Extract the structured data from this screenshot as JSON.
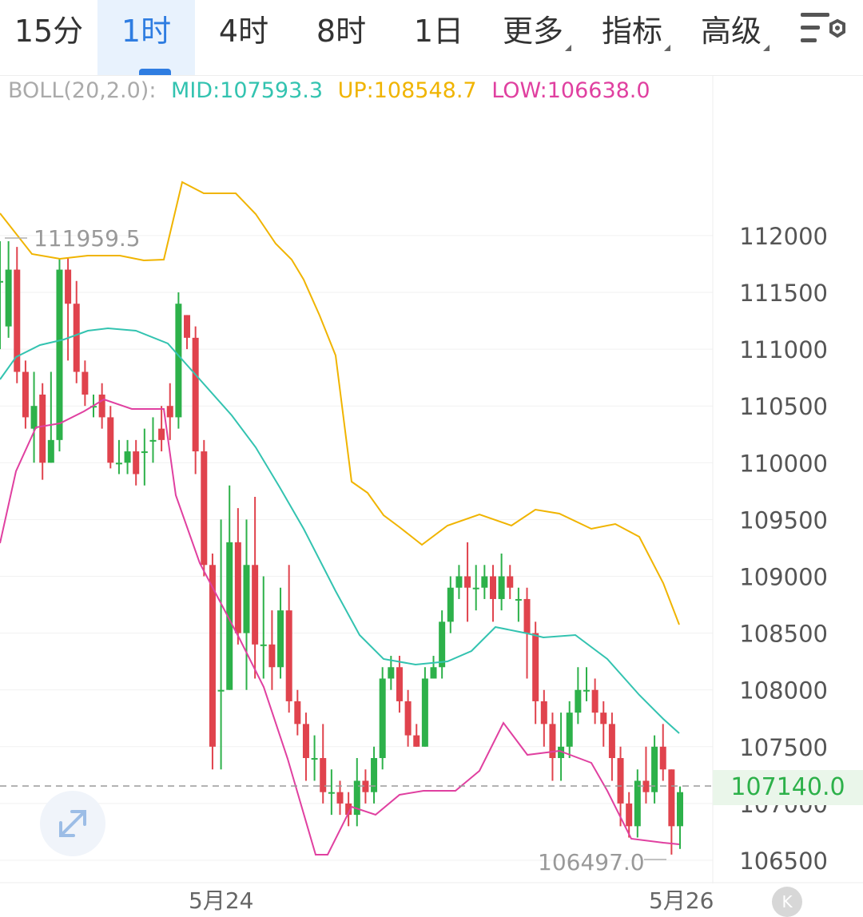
{
  "tabs": {
    "items": [
      {
        "label": "15分"
      },
      {
        "label": "1时"
      },
      {
        "label": "4时"
      },
      {
        "label": "8时"
      },
      {
        "label": "1日"
      },
      {
        "label": "更多"
      },
      {
        "label": "指标"
      },
      {
        "label": "高级"
      }
    ],
    "active_index": 1,
    "settings_icon": "settings-sliders-icon"
  },
  "indicator": {
    "name": "BOLL(20,2.0):",
    "mid": "MID:107593.3",
    "up": "UP:108548.7",
    "low": "LOW:106638.0",
    "colors": {
      "name": "#aaaaaa",
      "mid": "#33c3b0",
      "up": "#f0b400",
      "low": "#e040a0"
    }
  },
  "current_price": "107140.0",
  "high_label": "111959.5",
  "low_label": "106497.0",
  "dates": [
    "5月24",
    "5月26"
  ],
  "k_button": "K",
  "colors": {
    "up": "#2db14a",
    "down": "#e0434d",
    "accent": "#2f7de1"
  },
  "chart_data": {
    "type": "candlestick",
    "ylim": [
      106300,
      113600
    ],
    "yticks": [
      106500,
      107000,
      107500,
      108000,
      108500,
      109000,
      109500,
      110000,
      110500,
      111000,
      111500,
      112000
    ],
    "candles": [
      [
        111600,
        111600,
        111950,
        111000
      ],
      [
        111200,
        111700,
        111950,
        111100
      ],
      [
        111700,
        110800,
        111900,
        110700
      ],
      [
        110800,
        110400,
        110900,
        110300
      ],
      [
        110300,
        110500,
        110800,
        110000
      ],
      [
        110600,
        110000,
        110700,
        109850
      ],
      [
        110000,
        110200,
        110800,
        110000
      ],
      [
        110200,
        111700,
        111800,
        110100
      ],
      [
        111700,
        111400,
        111800,
        110900
      ],
      [
        111400,
        110800,
        111600,
        110700
      ],
      [
        110800,
        110600,
        110900,
        110500
      ],
      [
        110500,
        110500,
        110600,
        110400
      ],
      [
        110600,
        110400,
        110700,
        110300
      ],
      [
        110400,
        110000,
        110500,
        109950
      ],
      [
        110000,
        110000,
        110200,
        109900
      ],
      [
        110000,
        110100,
        110200,
        109900
      ],
      [
        110100,
        109900,
        110200,
        109800
      ],
      [
        110100,
        110100,
        110300,
        109800
      ],
      [
        110200,
        110200,
        110400,
        110000
      ],
      [
        110300,
        110200,
        110500,
        110100
      ],
      [
        110500,
        110400,
        110700,
        110200
      ],
      [
        110400,
        111400,
        111500,
        110300
      ],
      [
        111300,
        111100,
        111300,
        111000
      ],
      [
        111100,
        110100,
        111200,
        109900
      ],
      [
        110100,
        109100,
        110200,
        109000
      ],
      [
        109100,
        107500,
        109200,
        107300
      ],
      [
        108000,
        108000,
        109500,
        107300
      ],
      [
        108000,
        109300,
        109800,
        108000
      ],
      [
        109300,
        108500,
        109600,
        108400
      ],
      [
        108500,
        109100,
        109500,
        108000
      ],
      [
        109100,
        108400,
        109700,
        108100
      ],
      [
        108400,
        108400,
        109000,
        108100
      ],
      [
        108400,
        108200,
        108700,
        108000
      ],
      [
        108200,
        108700,
        108900,
        108100
      ],
      [
        108700,
        107900,
        109100,
        107800
      ],
      [
        107900,
        107700,
        108000,
        107600
      ],
      [
        107700,
        107400,
        107800,
        107200
      ],
      [
        107400,
        107400,
        107600,
        107200
      ],
      [
        107400,
        107100,
        107700,
        107000
      ],
      [
        107100,
        107100,
        107300,
        106900
      ],
      [
        107100,
        107000,
        107200,
        106900
      ],
      [
        107000,
        106900,
        107100,
        106800
      ],
      [
        106900,
        107200,
        107400,
        106800
      ],
      [
        107200,
        107100,
        107300,
        107000
      ],
      [
        107100,
        107400,
        107500,
        107000
      ],
      [
        107400,
        108100,
        108200,
        107300
      ],
      [
        108100,
        108200,
        108300,
        108000
      ],
      [
        108200,
        107900,
        108300,
        107800
      ],
      [
        107900,
        107600,
        108000,
        107500
      ],
      [
        107600,
        107500,
        107700,
        107500
      ],
      [
        107500,
        108100,
        108200,
        107500
      ],
      [
        108100,
        108200,
        108300,
        108100
      ],
      [
        108200,
        108600,
        108700,
        108100
      ],
      [
        108600,
        108900,
        109000,
        108500
      ],
      [
        108900,
        109000,
        109100,
        108800
      ],
      [
        109000,
        108900,
        109300,
        108600
      ],
      [
        108900,
        108900,
        109100,
        108700
      ],
      [
        108900,
        109000,
        109100,
        108800
      ],
      [
        109000,
        108800,
        109100,
        108600
      ],
      [
        108800,
        109000,
        109200,
        108700
      ],
      [
        109000,
        108900,
        109100,
        108800
      ],
      [
        108800,
        108800,
        108900,
        108600
      ],
      [
        108800,
        108500,
        108900,
        108100
      ],
      [
        108500,
        107900,
        108600,
        107700
      ],
      [
        107900,
        107700,
        108000,
        107500
      ],
      [
        107700,
        107400,
        107800,
        107200
      ],
      [
        107400,
        107500,
        107800,
        107200
      ],
      [
        107500,
        107800,
        107900,
        107400
      ],
      [
        107800,
        108000,
        108200,
        107700
      ],
      [
        108000,
        108000,
        108200,
        107900
      ],
      [
        108000,
        107800,
        108100,
        107700
      ],
      [
        107800,
        107700,
        107900,
        107500
      ],
      [
        107700,
        107400,
        107800,
        107200
      ],
      [
        107400,
        107000,
        107500,
        106800
      ],
      [
        107000,
        106800,
        107100,
        106700
      ],
      [
        106800,
        107200,
        107300,
        106700
      ],
      [
        107200,
        107100,
        107500,
        107000
      ],
      [
        107100,
        107500,
        107600,
        107000
      ],
      [
        107500,
        107300,
        107700,
        107200
      ],
      [
        107300,
        106800,
        107300,
        106550
      ],
      [
        106800,
        107100,
        107150,
        106600
      ]
    ],
    "boll_up_y": [
      [
        0,
        267
      ],
      [
        40,
        318
      ],
      [
        75,
        324
      ],
      [
        110,
        320
      ],
      [
        150,
        320
      ],
      [
        180,
        326
      ],
      [
        205,
        325
      ],
      [
        228,
        228
      ],
      [
        255,
        242
      ],
      [
        295,
        242
      ],
      [
        320,
        268
      ],
      [
        345,
        305
      ],
      [
        365,
        325
      ],
      [
        380,
        350
      ],
      [
        400,
        395
      ],
      [
        420,
        445
      ],
      [
        440,
        603
      ],
      [
        460,
        617
      ],
      [
        480,
        645
      ],
      [
        500,
        660
      ],
      [
        528,
        682
      ],
      [
        560,
        658
      ],
      [
        600,
        644
      ],
      [
        640,
        658
      ],
      [
        670,
        638
      ],
      [
        700,
        643
      ],
      [
        740,
        662
      ],
      [
        770,
        656
      ],
      [
        800,
        672
      ],
      [
        830,
        730
      ],
      [
        850,
        782
      ]
    ],
    "boll_mid_y": [
      [
        0,
        475
      ],
      [
        20,
        447
      ],
      [
        50,
        432
      ],
      [
        80,
        425
      ],
      [
        110,
        414
      ],
      [
        135,
        411
      ],
      [
        170,
        414
      ],
      [
        210,
        430
      ],
      [
        250,
        475
      ],
      [
        290,
        520
      ],
      [
        320,
        560
      ],
      [
        350,
        610
      ],
      [
        380,
        662
      ],
      [
        420,
        740
      ],
      [
        450,
        795
      ],
      [
        480,
        825
      ],
      [
        520,
        832
      ],
      [
        560,
        828
      ],
      [
        590,
        815
      ],
      [
        620,
        785
      ],
      [
        660,
        793
      ],
      [
        680,
        798
      ],
      [
        720,
        795
      ],
      [
        760,
        825
      ],
      [
        800,
        870
      ],
      [
        830,
        900
      ],
      [
        850,
        918
      ]
    ],
    "boll_low_y": [
      [
        0,
        680
      ],
      [
        20,
        590
      ],
      [
        45,
        535
      ],
      [
        75,
        530
      ],
      [
        105,
        515
      ],
      [
        130,
        500
      ],
      [
        165,
        512
      ],
      [
        205,
        512
      ],
      [
        220,
        620
      ],
      [
        250,
        705
      ],
      [
        300,
        800
      ],
      [
        330,
        860
      ],
      [
        360,
        950
      ],
      [
        395,
        1070
      ],
      [
        410,
        1070
      ],
      [
        440,
        1010
      ],
      [
        470,
        1020
      ],
      [
        500,
        995
      ],
      [
        530,
        990
      ],
      [
        570,
        990
      ],
      [
        600,
        965
      ],
      [
        630,
        905
      ],
      [
        660,
        945
      ],
      [
        700,
        940
      ],
      [
        740,
        955
      ],
      [
        760,
        990
      ],
      [
        790,
        1050
      ],
      [
        830,
        1055
      ],
      [
        850,
        1057
      ]
    ]
  }
}
